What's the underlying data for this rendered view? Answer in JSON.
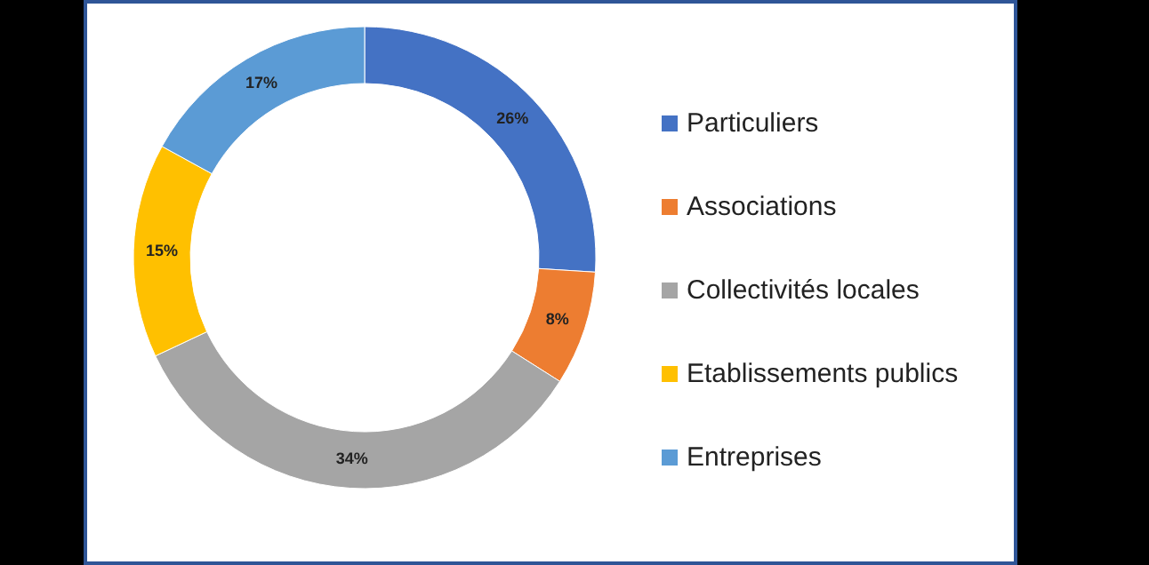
{
  "chart_data": {
    "type": "donut",
    "categories": [
      "Particuliers",
      "Associations",
      "Collectivités locales",
      "Etablissements publics",
      "Entreprises"
    ],
    "values": [
      26,
      8,
      34,
      15,
      17
    ],
    "colors": [
      "#4472c4",
      "#ed7d31",
      "#a5a5a5",
      "#ffc000",
      "#5b9bd5"
    ],
    "value_labels": [
      "26%",
      "8%",
      "34%",
      "15%",
      "17%"
    ],
    "legend": "right"
  }
}
